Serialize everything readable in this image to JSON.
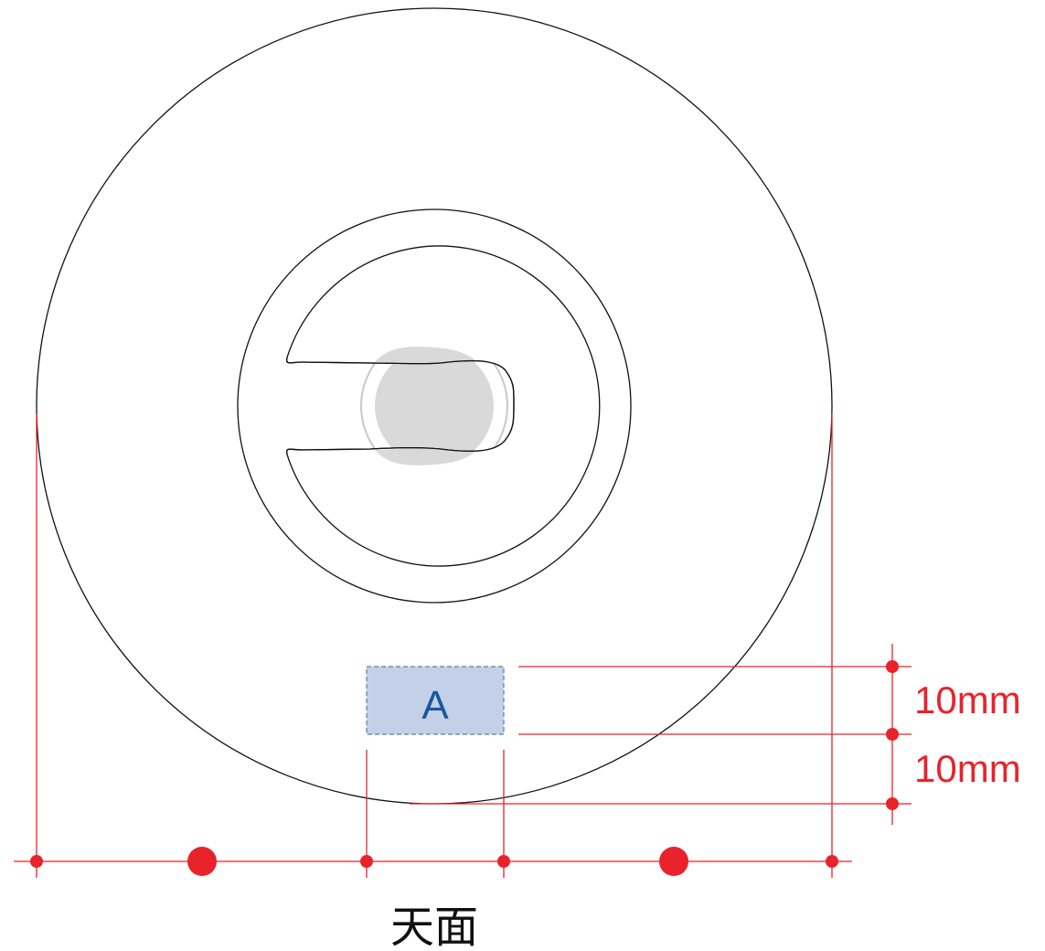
{
  "diagram": {
    "area_label": "A",
    "dimension_top": "10mm",
    "dimension_bottom": "10mm",
    "view_label": "天面"
  },
  "colors": {
    "dimension_red": "#e8232b",
    "outline": "#111111",
    "area_fill": "#c3d0e7",
    "area_border": "#5b7db3",
    "area_text": "#1a57a0",
    "hole_gray": "#d9d9d9",
    "hole_ring": "#c8c8c8"
  }
}
